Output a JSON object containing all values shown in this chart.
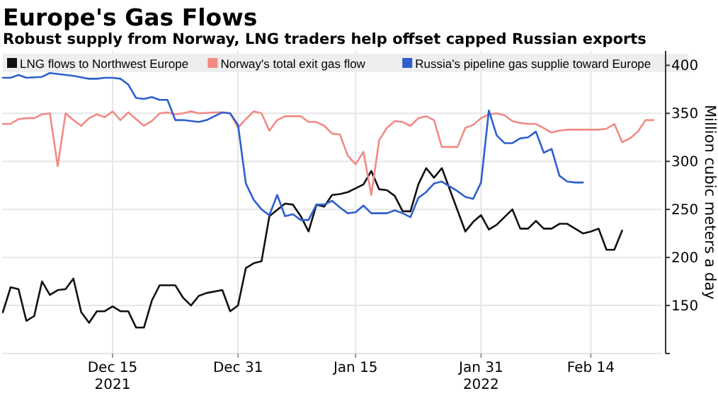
{
  "chart_data": {
    "type": "line",
    "title": "Europe's Gas Flows",
    "subtitle": "Robust supply from Norway, LNG traders help offset capped Russian exports",
    "ylabel": "Million cubic meters a day",
    "xlim": [
      "2021-12-01",
      "2022-02-23"
    ],
    "ylim": [
      100,
      415
    ],
    "xticks": [
      {
        "value": "2021-12-15",
        "label": "Dec 15\n2021"
      },
      {
        "value": "2021-12-31",
        "label": "Dec 31"
      },
      {
        "value": "2022-01-15",
        "label": "Jan 15"
      },
      {
        "value": "2022-01-31",
        "label": "Jan 31\n2022"
      },
      {
        "value": "2022-02-14",
        "label": "Feb 14"
      }
    ],
    "yticks": [
      {
        "value": 100,
        "label": null
      },
      150,
      200,
      250,
      300,
      350,
      400
    ],
    "grid": true,
    "legend": "top",
    "line_style": "solid",
    "series": [
      {
        "name": "LNG flows to Northwest Europe",
        "color": "#111111",
        "x": [
          "2021-12-01",
          "2021-12-02",
          "2021-12-03",
          "2021-12-04",
          "2021-12-05",
          "2021-12-06",
          "2021-12-07",
          "2021-12-08",
          "2021-12-09",
          "2021-12-10",
          "2021-12-11",
          "2021-12-12",
          "2021-12-13",
          "2021-12-14",
          "2021-12-15",
          "2021-12-16",
          "2021-12-17",
          "2021-12-18",
          "2021-12-19",
          "2021-12-20",
          "2021-12-21",
          "2021-12-23",
          "2021-12-24",
          "2021-12-25",
          "2021-12-26",
          "2021-12-27",
          "2021-12-29",
          "2021-12-30",
          "2021-12-31",
          "2022-01-01",
          "2022-01-02",
          "2022-01-03",
          "2022-01-04",
          "2022-01-06",
          "2022-01-07",
          "2022-01-08",
          "2022-01-09",
          "2022-01-10",
          "2022-01-11",
          "2022-01-12",
          "2022-01-13",
          "2022-01-14",
          "2022-01-15",
          "2022-01-16",
          "2022-01-17",
          "2022-01-18",
          "2022-01-19",
          "2022-01-20",
          "2022-01-21",
          "2022-01-22",
          "2022-01-23",
          "2022-01-24",
          "2022-01-25",
          "2022-01-26",
          "2022-01-29",
          "2022-01-30",
          "2022-01-31",
          "2022-02-01",
          "2022-02-02",
          "2022-02-04",
          "2022-02-05",
          "2022-02-06",
          "2022-02-07",
          "2022-02-08",
          "2022-02-09",
          "2022-02-10",
          "2022-02-11",
          "2022-02-13",
          "2022-02-14",
          "2022-02-15",
          "2022-02-16",
          "2022-02-17",
          "2022-02-18"
        ],
        "values": [
          143,
          169,
          167,
          134,
          139,
          175,
          161,
          166,
          167,
          178,
          143,
          132,
          144,
          144,
          149,
          144,
          144,
          127,
          127,
          155,
          171,
          171,
          158,
          150,
          160,
          163,
          166,
          144,
          150,
          189,
          194,
          196,
          243,
          256,
          255,
          243,
          227,
          255,
          253,
          265,
          266,
          268,
          272,
          276,
          290,
          271,
          270,
          264,
          248,
          248,
          276,
          293,
          283,
          293,
          227,
          237,
          244,
          229,
          234,
          250,
          230,
          230,
          238,
          230,
          230,
          235,
          235,
          225,
          227,
          230,
          208,
          208,
          228
        ]
      },
      {
        "name": "Norway's total exit gas flow",
        "color": "#f28a84",
        "x": [
          "2021-12-01",
          "2021-12-02",
          "2021-12-03",
          "2021-12-04",
          "2021-12-05",
          "2021-12-06",
          "2021-12-07",
          "2021-12-08",
          "2021-12-09",
          "2021-12-10",
          "2021-12-11",
          "2021-12-12",
          "2021-12-13",
          "2021-12-14",
          "2021-12-15",
          "2021-12-16",
          "2021-12-17",
          "2021-12-18",
          "2021-12-19",
          "2021-12-20",
          "2021-12-21",
          "2021-12-22",
          "2021-12-23",
          "2021-12-24",
          "2021-12-25",
          "2021-12-26",
          "2021-12-28",
          "2021-12-29",
          "2021-12-30",
          "2021-12-31",
          "2022-01-01",
          "2022-01-02",
          "2022-01-03",
          "2022-01-04",
          "2022-01-05",
          "2022-01-06",
          "2022-01-08",
          "2022-01-09",
          "2022-01-10",
          "2022-01-11",
          "2022-01-12",
          "2022-01-13",
          "2022-01-14",
          "2022-01-15",
          "2022-01-16",
          "2022-01-17",
          "2022-01-18",
          "2022-01-19",
          "2022-01-20",
          "2022-01-21",
          "2022-01-22",
          "2022-01-23",
          "2022-01-24",
          "2022-01-25",
          "2022-01-26",
          "2022-01-28",
          "2022-01-29",
          "2022-01-30",
          "2022-01-31",
          "2022-02-01",
          "2022-02-02",
          "2022-02-03",
          "2022-02-04",
          "2022-02-05",
          "2022-02-06",
          "2022-02-07",
          "2022-02-09",
          "2022-02-10",
          "2022-02-11",
          "2022-02-12",
          "2022-02-14",
          "2022-02-15",
          "2022-02-16",
          "2022-02-17",
          "2022-02-18",
          "2022-02-19",
          "2022-02-20",
          "2022-02-21",
          "2022-02-22"
        ],
        "values": [
          339,
          339,
          344,
          345,
          345,
          349,
          350,
          295,
          350,
          343,
          337,
          345,
          349,
          346,
          352,
          343,
          351,
          344,
          337,
          342,
          350,
          351,
          349,
          350,
          352,
          350,
          351,
          351,
          350,
          335,
          344,
          352,
          350,
          332,
          343,
          347,
          347,
          341,
          341,
          337,
          329,
          328,
          306,
          297,
          310,
          265,
          322,
          335,
          342,
          341,
          337,
          345,
          347,
          343,
          315,
          315,
          335,
          338,
          345,
          349,
          350,
          348,
          342,
          340,
          339,
          339,
          330,
          332,
          333,
          333,
          333,
          333,
          334,
          339,
          320,
          324,
          331,
          343,
          343
        ]
      },
      {
        "name": "Russia's pipeline gas supplie toward Europe",
        "color": "#2f5fcf",
        "x": [
          "2021-12-01",
          "2021-12-02",
          "2021-12-03",
          "2021-12-04",
          "2021-12-06",
          "2021-12-07",
          "2021-12-09",
          "2021-12-10",
          "2021-12-12",
          "2021-12-13",
          "2021-12-14",
          "2021-12-15",
          "2021-12-16",
          "2021-12-17",
          "2021-12-18",
          "2021-12-19",
          "2021-12-20",
          "2021-12-21",
          "2021-12-22",
          "2021-12-23",
          "2021-12-24",
          "2021-12-26",
          "2021-12-27",
          "2021-12-29",
          "2021-12-30",
          "2021-12-31",
          "2022-01-01",
          "2022-01-02",
          "2022-01-03",
          "2022-01-04",
          "2022-01-05",
          "2022-01-06",
          "2022-01-07",
          "2022-01-08",
          "2022-01-09",
          "2022-01-10",
          "2022-01-11",
          "2022-01-12",
          "2022-01-13",
          "2022-01-14",
          "2022-01-15",
          "2022-01-16",
          "2022-01-17",
          "2022-01-18",
          "2022-01-19",
          "2022-01-20",
          "2022-01-21",
          "2022-01-22",
          "2022-01-23",
          "2022-01-24",
          "2022-01-25",
          "2022-01-26",
          "2022-01-28",
          "2022-01-29",
          "2022-01-30",
          "2022-01-31",
          "2022-02-01",
          "2022-02-02",
          "2022-02-03",
          "2022-02-04",
          "2022-02-05",
          "2022-02-06",
          "2022-02-07",
          "2022-02-08",
          "2022-02-09",
          "2022-02-10",
          "2022-02-11",
          "2022-02-12",
          "2022-02-13"
        ],
        "values": [
          387,
          387,
          390,
          387,
          388,
          392,
          390,
          389,
          386,
          386,
          387,
          387,
          386,
          380,
          366,
          365,
          367,
          364,
          364,
          343,
          343,
          341,
          343,
          351,
          350,
          338,
          277,
          260,
          250,
          244,
          265,
          243,
          245,
          239,
          239,
          255,
          255,
          259,
          252,
          246,
          247,
          254,
          246,
          246,
          246,
          249,
          246,
          242,
          262,
          268,
          277,
          279,
          269,
          263,
          261,
          278,
          353,
          327,
          319,
          319,
          324,
          325,
          331,
          309,
          313,
          285,
          279,
          278,
          278
        ]
      }
    ]
  }
}
